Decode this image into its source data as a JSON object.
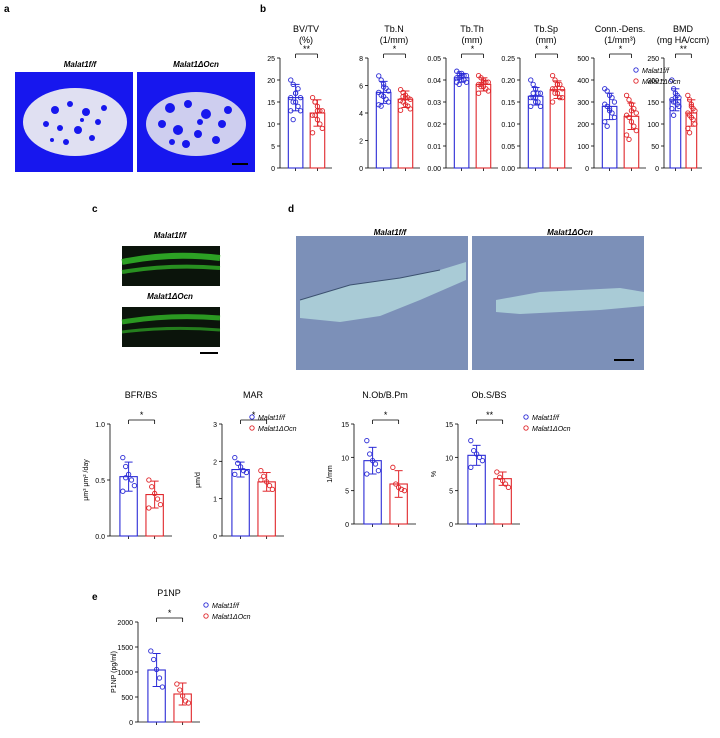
{
  "panels": {
    "a": "a",
    "b": "b",
    "c": "c",
    "d": "d",
    "e": "e"
  },
  "groups": {
    "ff": "Malat1f/f",
    "ocn": "Malat1ΔOcn"
  },
  "images": {
    "a_left": "Malat1f/f",
    "a_right": "Malat1ΔOcn",
    "c_top": "Malat1f/f",
    "c_bottom": "Malat1ΔOcn",
    "d_left": "Malat1f/f",
    "d_right": "Malat1ΔOcn"
  },
  "colors": {
    "ff": "#2b2bd6",
    "ocn": "#e0262b",
    "microct_bg": "#1717ee",
    "fluor_bg": "#0b140b",
    "fluor_band": "#35c42a",
    "histo_bg": "#7c90b8"
  },
  "chart_data": [
    {
      "id": "bvtv",
      "type": "bar",
      "title": "BV/TV",
      "unit": "(%)",
      "yticks": [
        "0",
        "5",
        "10",
        "15",
        "20",
        "25"
      ],
      "ylim": [
        0,
        25
      ],
      "series": [
        {
          "name": "Malat1f/f",
          "values": [
            16
          ]
        },
        {
          "name": "Malat1ΔOcn",
          "values": [
            12.5
          ]
        }
      ],
      "err": [
        3,
        3
      ],
      "pts": [
        [
          20,
          19,
          17,
          18,
          16,
          16,
          15,
          15,
          14,
          13,
          13,
          11,
          17
        ],
        [
          16,
          15,
          14,
          13,
          13,
          12,
          12,
          11,
          10,
          9,
          8,
          15,
          13
        ]
      ],
      "sig": "**"
    },
    {
      "id": "tbn",
      "type": "bar",
      "title": "Tb.N",
      "unit": "(1/mm)",
      "yticks": [
        "0",
        "2",
        "4",
        "6",
        "8"
      ],
      "ylim": [
        0,
        8
      ],
      "series": [
        {
          "name": "Malat1f/f",
          "values": [
            5.5
          ]
        },
        {
          "name": "Malat1ΔOcn",
          "values": [
            5.0
          ]
        }
      ],
      "err": [
        0.8,
        0.6
      ],
      "pts": [
        [
          6.7,
          6.4,
          6.1,
          5.8,
          5.6,
          5.5,
          5.3,
          5.2,
          5.0,
          4.8,
          4.6,
          4.5,
          5.9
        ],
        [
          5.7,
          5.5,
          5.3,
          5.1,
          5.0,
          4.9,
          4.8,
          4.6,
          4.5,
          4.3,
          4.2,
          5.2,
          5.1
        ]
      ],
      "sig": "*"
    },
    {
      "id": "tbth",
      "type": "bar",
      "title": "Tb.Th",
      "unit": "(mm)",
      "yticks": [
        "0.00",
        "0.01",
        "0.02",
        "0.03",
        "0.04",
        "0.05"
      ],
      "ylim": [
        0,
        0.05
      ],
      "series": [
        {
          "name": "Malat1f/f",
          "values": [
            0.041
          ]
        },
        {
          "name": "Malat1ΔOcn",
          "values": [
            0.038
          ]
        }
      ],
      "err": [
        0.002,
        0.003
      ],
      "pts": [
        [
          0.044,
          0.043,
          0.043,
          0.042,
          0.042,
          0.041,
          0.041,
          0.04,
          0.04,
          0.039,
          0.039,
          0.038,
          0.042
        ],
        [
          0.042,
          0.041,
          0.04,
          0.039,
          0.039,
          0.038,
          0.037,
          0.037,
          0.036,
          0.035,
          0.034,
          0.038,
          0.039
        ]
      ],
      "sig": "*"
    },
    {
      "id": "tbsp",
      "type": "bar",
      "title": "Tb.Sp",
      "unit": "(mm)",
      "yticks": [
        "0.00",
        "0.05",
        "0.10",
        "0.15",
        "0.20",
        "0.25"
      ],
      "ylim": [
        0,
        0.25
      ],
      "series": [
        {
          "name": "Malat1f/f",
          "values": [
            0.163
          ]
        },
        {
          "name": "Malat1ΔOcn",
          "values": [
            0.178
          ]
        }
      ],
      "err": [
        0.02,
        0.02
      ],
      "pts": [
        [
          0.2,
          0.19,
          0.18,
          0.17,
          0.17,
          0.16,
          0.16,
          0.15,
          0.15,
          0.14,
          0.14,
          0.17,
          0.16
        ],
        [
          0.21,
          0.2,
          0.19,
          0.19,
          0.18,
          0.18,
          0.17,
          0.17,
          0.16,
          0.16,
          0.15,
          0.18,
          0.19
        ]
      ],
      "sig": "*"
    },
    {
      "id": "conn",
      "type": "bar",
      "title": "Conn.-Dens.",
      "unit": "(1/mm³)",
      "yticks": [
        "0",
        "100",
        "200",
        "300",
        "400",
        "500"
      ],
      "ylim": [
        0,
        500
      ],
      "series": [
        {
          "name": "Malat1f/f",
          "values": [
            280
          ]
        },
        {
          "name": "Malat1ΔOcn",
          "values": [
            235
          ]
        }
      ],
      "err": [
        60,
        60
      ],
      "pts": [
        [
          360,
          350,
          330,
          320,
          300,
          290,
          280,
          270,
          250,
          230,
          210,
          190,
          260
        ],
        [
          330,
          310,
          290,
          270,
          250,
          240,
          230,
          210,
          190,
          170,
          150,
          130,
          260
        ]
      ],
      "sig": "*"
    },
    {
      "id": "bmd",
      "type": "bar",
      "title": "BMD",
      "unit": "(mg HA/ccm)",
      "yticks": [
        "0",
        "50",
        "100",
        "150",
        "200",
        "250"
      ],
      "ylim": [
        0,
        250
      ],
      "series": [
        {
          "name": "Malat1f/f",
          "values": [
            155
          ]
        },
        {
          "name": "Malat1ΔOcn",
          "values": [
            125
          ]
        }
      ],
      "err": [
        25,
        30
      ],
      "pts": [
        [
          200,
          180,
          170,
          165,
          160,
          155,
          150,
          150,
          145,
          140,
          135,
          120,
          160
        ],
        [
          165,
          155,
          145,
          135,
          130,
          125,
          120,
          115,
          110,
          100,
          90,
          80,
          140
        ]
      ],
      "sig": "**"
    },
    {
      "id": "bfrbs",
      "type": "bar",
      "title": "BFR/BS",
      "unit": "μm³ μm² /day",
      "yticks": [
        "0.0",
        "0.5",
        "1.0"
      ],
      "ylim": [
        0,
        1.0
      ],
      "series": [
        {
          "name": "Malat1f/f",
          "values": [
            0.53
          ]
        },
        {
          "name": "Malat1ΔOcn",
          "values": [
            0.37
          ]
        }
      ],
      "err": [
        0.13,
        0.12
      ],
      "pts": [
        [
          0.7,
          0.62,
          0.55,
          0.5,
          0.45,
          0.4,
          0.52
        ],
        [
          0.5,
          0.44,
          0.38,
          0.33,
          0.28,
          0.25
        ]
      ],
      "sig": "*"
    },
    {
      "id": "mar",
      "type": "bar",
      "title": "MAR",
      "unit": "μm/d",
      "yticks": [
        "0",
        "1",
        "2",
        "3"
      ],
      "ylim": [
        0,
        3
      ],
      "series": [
        {
          "name": "Malat1f/f",
          "values": [
            1.78
          ]
        },
        {
          "name": "Malat1ΔOcn",
          "values": [
            1.45
          ]
        }
      ],
      "err": [
        0.2,
        0.25
      ],
      "pts": [
        [
          2.1,
          1.95,
          1.85,
          1.75,
          1.7,
          1.65
        ],
        [
          1.75,
          1.6,
          1.45,
          1.35,
          1.25,
          1.5
        ]
      ],
      "sig": "*"
    },
    {
      "id": "nob",
      "type": "bar",
      "title": "N.Ob/B.Pm",
      "unit": "1/mm",
      "yticks": [
        "0",
        "5",
        "10",
        "15"
      ],
      "ylim": [
        0,
        15
      ],
      "series": [
        {
          "name": "Malat1f/f",
          "values": [
            9.5
          ]
        },
        {
          "name": "Malat1ΔOcn",
          "values": [
            6.0
          ]
        }
      ],
      "err": [
        2.0,
        2.0
      ],
      "pts": [
        [
          12.5,
          10.5,
          9.5,
          9.0,
          8.0,
          7.5
        ],
        [
          8.5,
          6.0,
          5.5,
          5.2,
          5.0
        ]
      ],
      "sig": "*"
    },
    {
      "id": "obs",
      "type": "bar",
      "title": "Ob.S/BS",
      "unit": "%",
      "yticks": [
        "0",
        "5",
        "10",
        "15"
      ],
      "ylim": [
        0,
        15
      ],
      "series": [
        {
          "name": "Malat1f/f",
          "values": [
            10.3
          ]
        },
        {
          "name": "Malat1ΔOcn",
          "values": [
            6.8
          ]
        }
      ],
      "err": [
        1.5,
        1.0
      ],
      "pts": [
        [
          12.5,
          11.0,
          10.5,
          10.0,
          9.5,
          8.5
        ],
        [
          7.8,
          7.0,
          6.5,
          6.0,
          5.5
        ]
      ],
      "sig": "**"
    },
    {
      "id": "p1np",
      "type": "bar",
      "title": "P1NP",
      "unit": "P1NP (pg/ml)",
      "yticks": [
        "0",
        "500",
        "1000",
        "1500",
        "2000"
      ],
      "ylim": [
        0,
        2000
      ],
      "series": [
        {
          "name": "Malat1f/f",
          "values": [
            1040
          ]
        },
        {
          "name": "Malat1ΔOcn",
          "values": [
            560
          ]
        }
      ],
      "err": [
        330,
        220
      ],
      "pts": [
        [
          1420,
          1250,
          1050,
          880,
          700
        ],
        [
          760,
          640,
          520,
          420,
          380
        ]
      ],
      "sig": "*"
    }
  ]
}
